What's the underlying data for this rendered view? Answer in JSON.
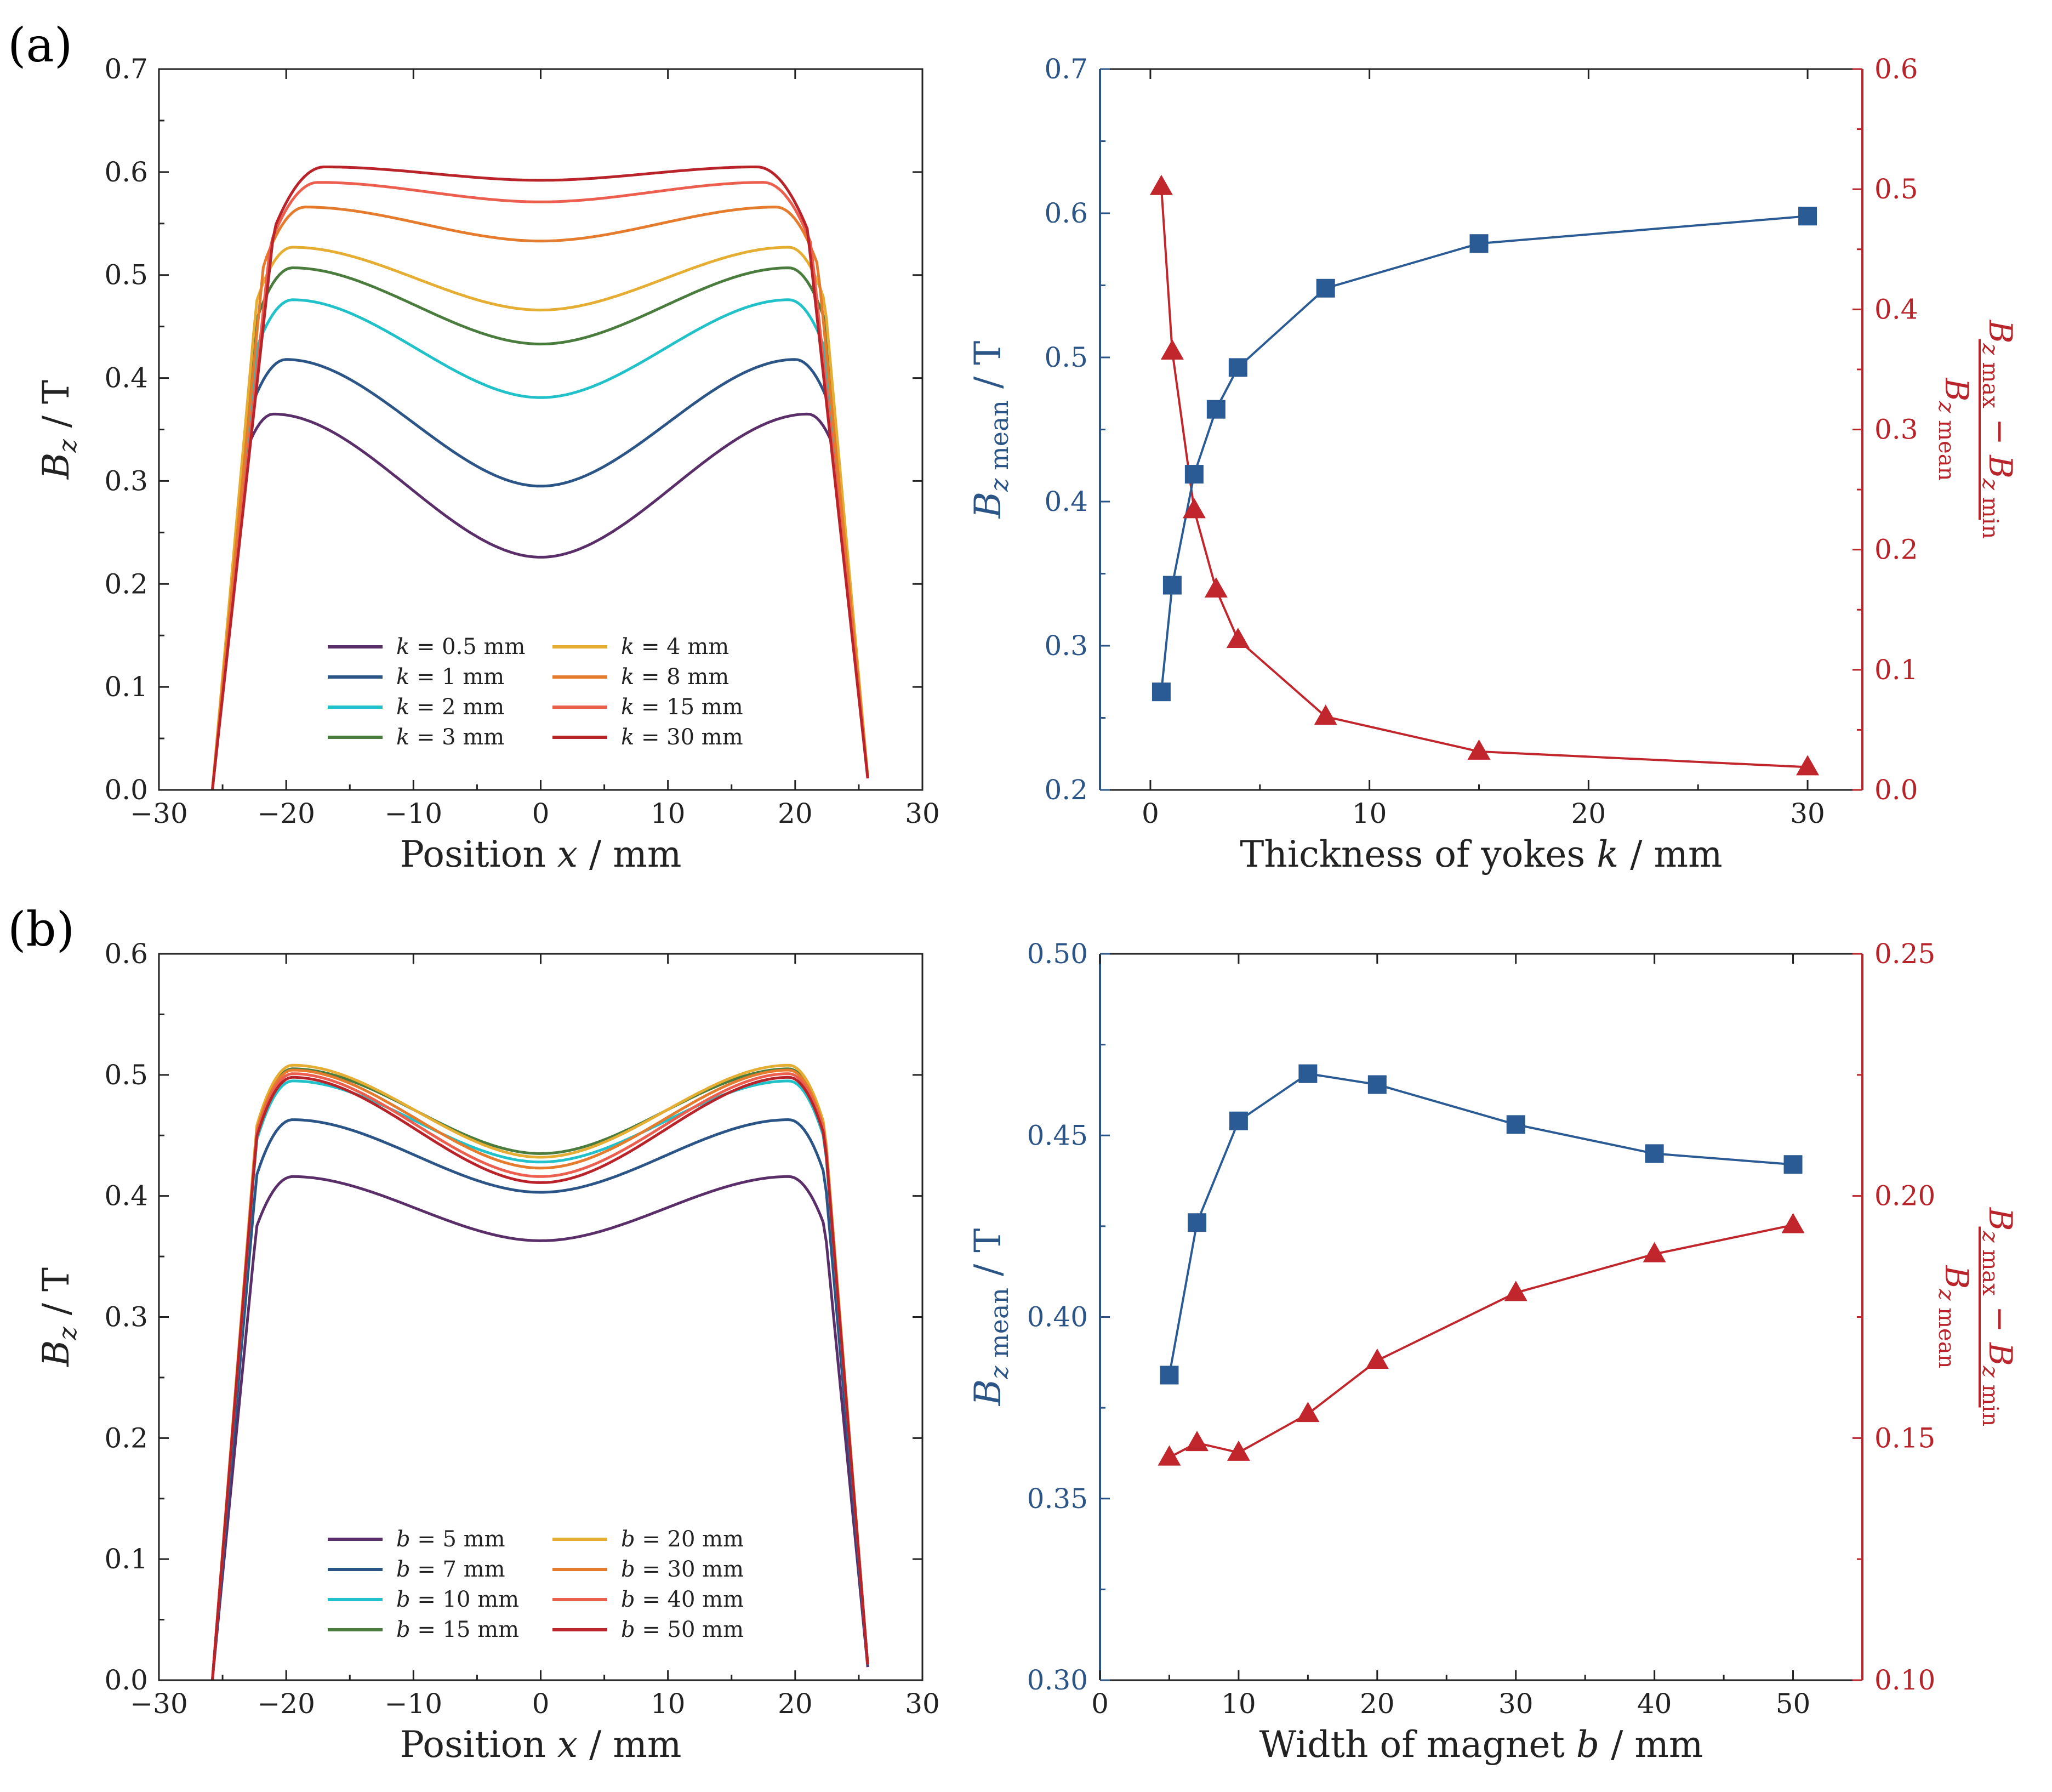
{
  "panel_labels": {
    "a": "(a)",
    "b": "(b)"
  },
  "colors": {
    "series": [
      "#5a2e69",
      "#2b5487",
      "#20c1c9",
      "#4a7d3d",
      "#e5ad32",
      "#e57b2c",
      "#ec5e4e",
      "#b9242b"
    ],
    "blue_axis": "#2b5487",
    "red_axis": "#b9242b",
    "blue_marker": "#2b5b94",
    "red_marker": "#c0262c"
  },
  "chart_data": [
    {
      "id": "a-left",
      "type": "line",
      "xlabel": "Position x / mm",
      "ylabel": "Bz / T",
      "xlim": [
        -30,
        30
      ],
      "ylim": [
        0,
        0.7
      ],
      "xticks": [
        -30,
        -20,
        -10,
        0,
        10,
        20,
        30
      ],
      "xtick_labels": [
        "−30",
        "−20",
        "−10",
        "0",
        "10",
        "20",
        "30"
      ],
      "yticks": [
        0,
        0.1,
        0.2,
        0.3,
        0.4,
        0.5,
        0.6,
        0.7
      ],
      "ytick_labels": [
        "0.0",
        "0.1",
        "0.2",
        "0.3",
        "0.4",
        "0.5",
        "0.6",
        "0.7"
      ],
      "legend_location": "bottom-center",
      "legend_variable": "k",
      "series": [
        {
          "name": "k = 0.5 mm",
          "legend_value": "= 0.5 mm",
          "edge": 25.8,
          "peak_x": 21,
          "peak": 0.365,
          "center": 0.226
        },
        {
          "name": "k = 1 mm",
          "legend_value": "= 1 mm",
          "edge": 25.8,
          "peak_x": 20,
          "peak": 0.418,
          "center": 0.295
        },
        {
          "name": "k = 2 mm",
          "legend_value": "= 2 mm",
          "edge": 25.8,
          "peak_x": 19.5,
          "peak": 0.476,
          "center": 0.381
        },
        {
          "name": "k = 3 mm",
          "legend_value": "= 3 mm",
          "edge": 25.8,
          "peak_x": 19.5,
          "peak": 0.507,
          "center": 0.433
        },
        {
          "name": "k = 4 mm",
          "legend_value": "= 4 mm",
          "edge": 25.8,
          "peak_x": 19.5,
          "peak": 0.527,
          "center": 0.466
        },
        {
          "name": "k = 8 mm",
          "legend_value": "= 8 mm",
          "edge": 25.8,
          "peak_x": 18.5,
          "peak": 0.566,
          "center": 0.533
        },
        {
          "name": "k = 15 mm",
          "legend_value": "= 15 mm",
          "edge": 25.8,
          "peak_x": 17.5,
          "peak": 0.59,
          "center": 0.571
        },
        {
          "name": "k = 30 mm",
          "legend_value": "= 30 mm",
          "edge": 25.8,
          "peak_x": 17,
          "peak": 0.605,
          "center": 0.592
        }
      ]
    },
    {
      "id": "a-right",
      "type": "line",
      "xlabel": "Thickness of yokes k / mm",
      "ylabel_left": "Bz mean / T",
      "ylabel_right": "(Bz max − Bz min) / Bz mean",
      "xlim": [
        -2.3,
        32.5
      ],
      "xticks": [
        0,
        10,
        20,
        30
      ],
      "xtick_labels": [
        "0",
        "10",
        "20",
        "30"
      ],
      "ylim_left": [
        0.2,
        0.7
      ],
      "yticks_left": [
        0.2,
        0.3,
        0.4,
        0.5,
        0.6,
        0.7
      ],
      "ytick_labels_left": [
        "0.2",
        "0.3",
        "0.4",
        "0.5",
        "0.6",
        "0.7"
      ],
      "ylim_right": [
        0,
        0.6
      ],
      "yticks_right": [
        0,
        0.1,
        0.2,
        0.3,
        0.4,
        0.5,
        0.6
      ],
      "ytick_labels_right": [
        "0.0",
        "0.1",
        "0.2",
        "0.3",
        "0.4",
        "0.5",
        "0.6"
      ],
      "x": [
        0.5,
        1,
        2,
        3,
        4,
        8,
        15,
        30
      ],
      "series": [
        {
          "name": "Bz mean",
          "axis": "left",
          "marker": "square",
          "values": [
            0.268,
            0.342,
            0.419,
            0.464,
            0.493,
            0.548,
            0.579,
            0.598
          ]
        },
        {
          "name": "(Bz max − Bz min) / Bz mean",
          "axis": "right",
          "marker": "triangle",
          "values": [
            0.502,
            0.365,
            0.233,
            0.167,
            0.125,
            0.061,
            0.032,
            0.019
          ]
        }
      ]
    },
    {
      "id": "b-left",
      "type": "line",
      "xlabel": "Position x / mm",
      "ylabel": "Bz / T",
      "xlim": [
        -30,
        30
      ],
      "ylim": [
        0,
        0.6
      ],
      "xticks": [
        -30,
        -20,
        -10,
        0,
        10,
        20,
        30
      ],
      "xtick_labels": [
        "−30",
        "−20",
        "−10",
        "0",
        "10",
        "20",
        "30"
      ],
      "yticks": [
        0,
        0.1,
        0.2,
        0.3,
        0.4,
        0.5,
        0.6
      ],
      "ytick_labels": [
        "0.0",
        "0.1",
        "0.2",
        "0.3",
        "0.4",
        "0.5",
        "0.6"
      ],
      "legend_location": "bottom-center",
      "legend_variable": "b",
      "series": [
        {
          "name": "b = 5 mm",
          "legend_value": "= 5 mm",
          "edge": 25.8,
          "peak_x": 19.5,
          "peak": 0.416,
          "center": 0.363
        },
        {
          "name": "b = 7 mm",
          "legend_value": "= 7 mm",
          "edge": 25.8,
          "peak_x": 19.5,
          "peak": 0.463,
          "center": 0.403
        },
        {
          "name": "b = 10 mm",
          "legend_value": "= 10 mm",
          "edge": 25.8,
          "peak_x": 19.5,
          "peak": 0.495,
          "center": 0.428
        },
        {
          "name": "b = 15 mm",
          "legend_value": "= 15 mm",
          "edge": 25.8,
          "peak_x": 19.5,
          "peak": 0.505,
          "center": 0.435
        },
        {
          "name": "b = 20 mm",
          "legend_value": "= 20 mm",
          "edge": 25.8,
          "peak_x": 19.5,
          "peak": 0.508,
          "center": 0.432
        },
        {
          "name": "b = 30 mm",
          "legend_value": "= 30 mm",
          "edge": 25.8,
          "peak_x": 19.5,
          "peak": 0.504,
          "center": 0.423
        },
        {
          "name": "b = 40 mm",
          "legend_value": "= 40 mm",
          "edge": 25.8,
          "peak_x": 19.5,
          "peak": 0.501,
          "center": 0.416
        },
        {
          "name": "b = 50 mm",
          "legend_value": "= 50 mm",
          "edge": 25.8,
          "peak_x": 19.5,
          "peak": 0.498,
          "center": 0.411
        }
      ]
    },
    {
      "id": "b-right",
      "type": "line",
      "xlabel": "Width of magnet b / mm",
      "ylabel_left": "Bz mean / T",
      "ylabel_right": "(Bz max − Bz min) / Bz mean",
      "xlim": [
        0,
        55
      ],
      "xticks": [
        0,
        10,
        20,
        30,
        40,
        50
      ],
      "xtick_labels": [
        "0",
        "10",
        "20",
        "30",
        "40",
        "50"
      ],
      "ylim_left": [
        0.3,
        0.5
      ],
      "yticks_left": [
        0.3,
        0.35,
        0.4,
        0.45,
        0.5
      ],
      "ytick_labels_left": [
        "0.30",
        "0.35",
        "0.40",
        "0.45",
        "0.50"
      ],
      "ylim_right": [
        0.1,
        0.25
      ],
      "yticks_right": [
        0.1,
        0.15,
        0.2,
        0.25
      ],
      "ytick_labels_right": [
        "0.10",
        "0.15",
        "0.20",
        "0.25"
      ],
      "x": [
        5,
        7,
        10,
        15,
        20,
        30,
        40,
        50
      ],
      "series": [
        {
          "name": "Bz mean",
          "axis": "left",
          "marker": "square",
          "values": [
            0.384,
            0.426,
            0.454,
            0.467,
            0.464,
            0.453,
            0.445,
            0.442
          ]
        },
        {
          "name": "(Bz max − Bz min) / Bz mean",
          "axis": "right",
          "marker": "triangle",
          "values": [
            0.146,
            0.149,
            0.147,
            0.155,
            0.166,
            0.18,
            0.188,
            0.194
          ]
        }
      ]
    }
  ]
}
